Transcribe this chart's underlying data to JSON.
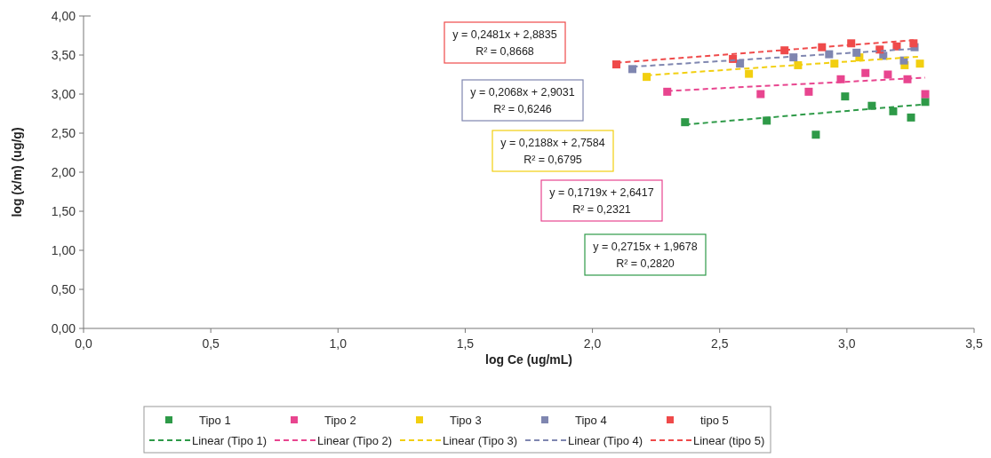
{
  "chart_data": {
    "type": "scatter",
    "xlabel": "log Ce (ug/mL)",
    "ylabel": "log (x/m) (ug/g)",
    "xlim": [
      0,
      3.5
    ],
    "xticks": [
      {
        "value": 0,
        "label": "0,0"
      },
      {
        "value": 0.5,
        "label": "0,5"
      },
      {
        "value": 1,
        "label": "1,0"
      },
      {
        "value": 1.5,
        "label": "1,5"
      },
      {
        "value": 2,
        "label": "2,0"
      },
      {
        "value": 2.5,
        "label": "2,5"
      },
      {
        "value": 3,
        "label": "3,0"
      },
      {
        "value": 3.5,
        "label": "3,5"
      }
    ],
    "ylim": [
      0,
      4
    ],
    "yticks": [
      {
        "value": 0,
        "label": "0,00"
      },
      {
        "value": 0.5,
        "label": "0,50"
      },
      {
        "value": 1,
        "label": "1,00"
      },
      {
        "value": 1.5,
        "label": "1,50"
      },
      {
        "value": 2,
        "label": "2,00"
      },
      {
        "value": 2.5,
        "label": "2,50"
      },
      {
        "value": 3,
        "label": "3,00"
      },
      {
        "value": 3.5,
        "label": "3,50"
      },
      {
        "value": 4,
        "label": "4,00"
      }
    ],
    "grid": false,
    "legend": "bottom",
    "marker": "square",
    "series": [
      {
        "name": "Tipo 1",
        "color": "#2e9a48",
        "x": [
          2.364,
          2.685,
          2.878,
          2.993,
          3.098,
          3.182,
          3.252,
          3.308
        ],
        "values": [
          2.64,
          2.66,
          2.48,
          2.97,
          2.85,
          2.78,
          2.7,
          2.9
        ]
      },
      {
        "name": "Tipo 2",
        "color": "#e8458f",
        "x": [
          2.294,
          2.661,
          2.85,
          2.976,
          3.073,
          3.161,
          3.238,
          3.308
        ],
        "values": [
          3.03,
          3.0,
          3.03,
          3.19,
          3.27,
          3.25,
          3.19,
          3.0
        ]
      },
      {
        "name": "Tipo 3",
        "color": "#f2cf10",
        "x": [
          2.213,
          2.615,
          2.808,
          2.951,
          3.049,
          3.227,
          3.287
        ],
        "values": [
          3.22,
          3.26,
          3.37,
          3.39,
          3.47,
          3.37,
          3.39
        ]
      },
      {
        "name": "Tipo 4",
        "color": "#7f86b0",
        "x": [
          2.157,
          2.58,
          2.79,
          2.93,
          3.038,
          3.143,
          3.224,
          3.266
        ],
        "values": [
          3.32,
          3.39,
          3.47,
          3.51,
          3.53,
          3.49,
          3.43,
          3.6
        ]
      },
      {
        "name": "tipo 5",
        "color": "#ef4a4a",
        "x": [
          2.094,
          2.552,
          2.755,
          2.902,
          3.017,
          3.129,
          3.196,
          3.262
        ],
        "values": [
          3.38,
          3.45,
          3.56,
          3.6,
          3.65,
          3.57,
          3.61,
          3.65
        ]
      },
      {
        "name": "Linear (Tipo 1)",
        "type": "line",
        "line_style": "dashed",
        "marker": "none",
        "color": "#2e9a48",
        "x": [
          2.364,
          3.308
        ],
        "values": [
          2.61,
          2.87
        ]
      },
      {
        "name": "Linear (Tipo 2)",
        "type": "line",
        "line_style": "dashed",
        "marker": "none",
        "color": "#e8458f",
        "x": [
          2.294,
          3.308
        ],
        "values": [
          3.04,
          3.21
        ]
      },
      {
        "name": "Linear (Tipo 3)",
        "type": "line",
        "line_style": "dashed",
        "marker": "none",
        "color": "#f2cf10",
        "x": [
          2.213,
          3.287
        ],
        "values": [
          3.24,
          3.48
        ]
      },
      {
        "name": "Linear (Tipo 4)",
        "type": "line",
        "line_style": "dashed",
        "marker": "none",
        "color": "#7f86b0",
        "x": [
          2.157,
          3.266
        ],
        "values": [
          3.35,
          3.58
        ]
      },
      {
        "name": "Linear (tipo 5)",
        "type": "line",
        "line_style": "dashed",
        "marker": "none",
        "color": "#ef4a4a",
        "x": [
          2.094,
          3.262
        ],
        "values": [
          3.4,
          3.69
        ]
      }
    ],
    "annotations": [
      "y = 0,2481x + 2,8835\nR² = 0,8668",
      "y = 0,2068x + 2,9031\nR² = 0,6246",
      "y = 0,2188x + 2,7584\nR² = 0,6795",
      "y = 0,1719x + 2,6417\nR² = 0,2321",
      "y = 0,2715x + 1,9678\nR² = 0,2820"
    ]
  }
}
